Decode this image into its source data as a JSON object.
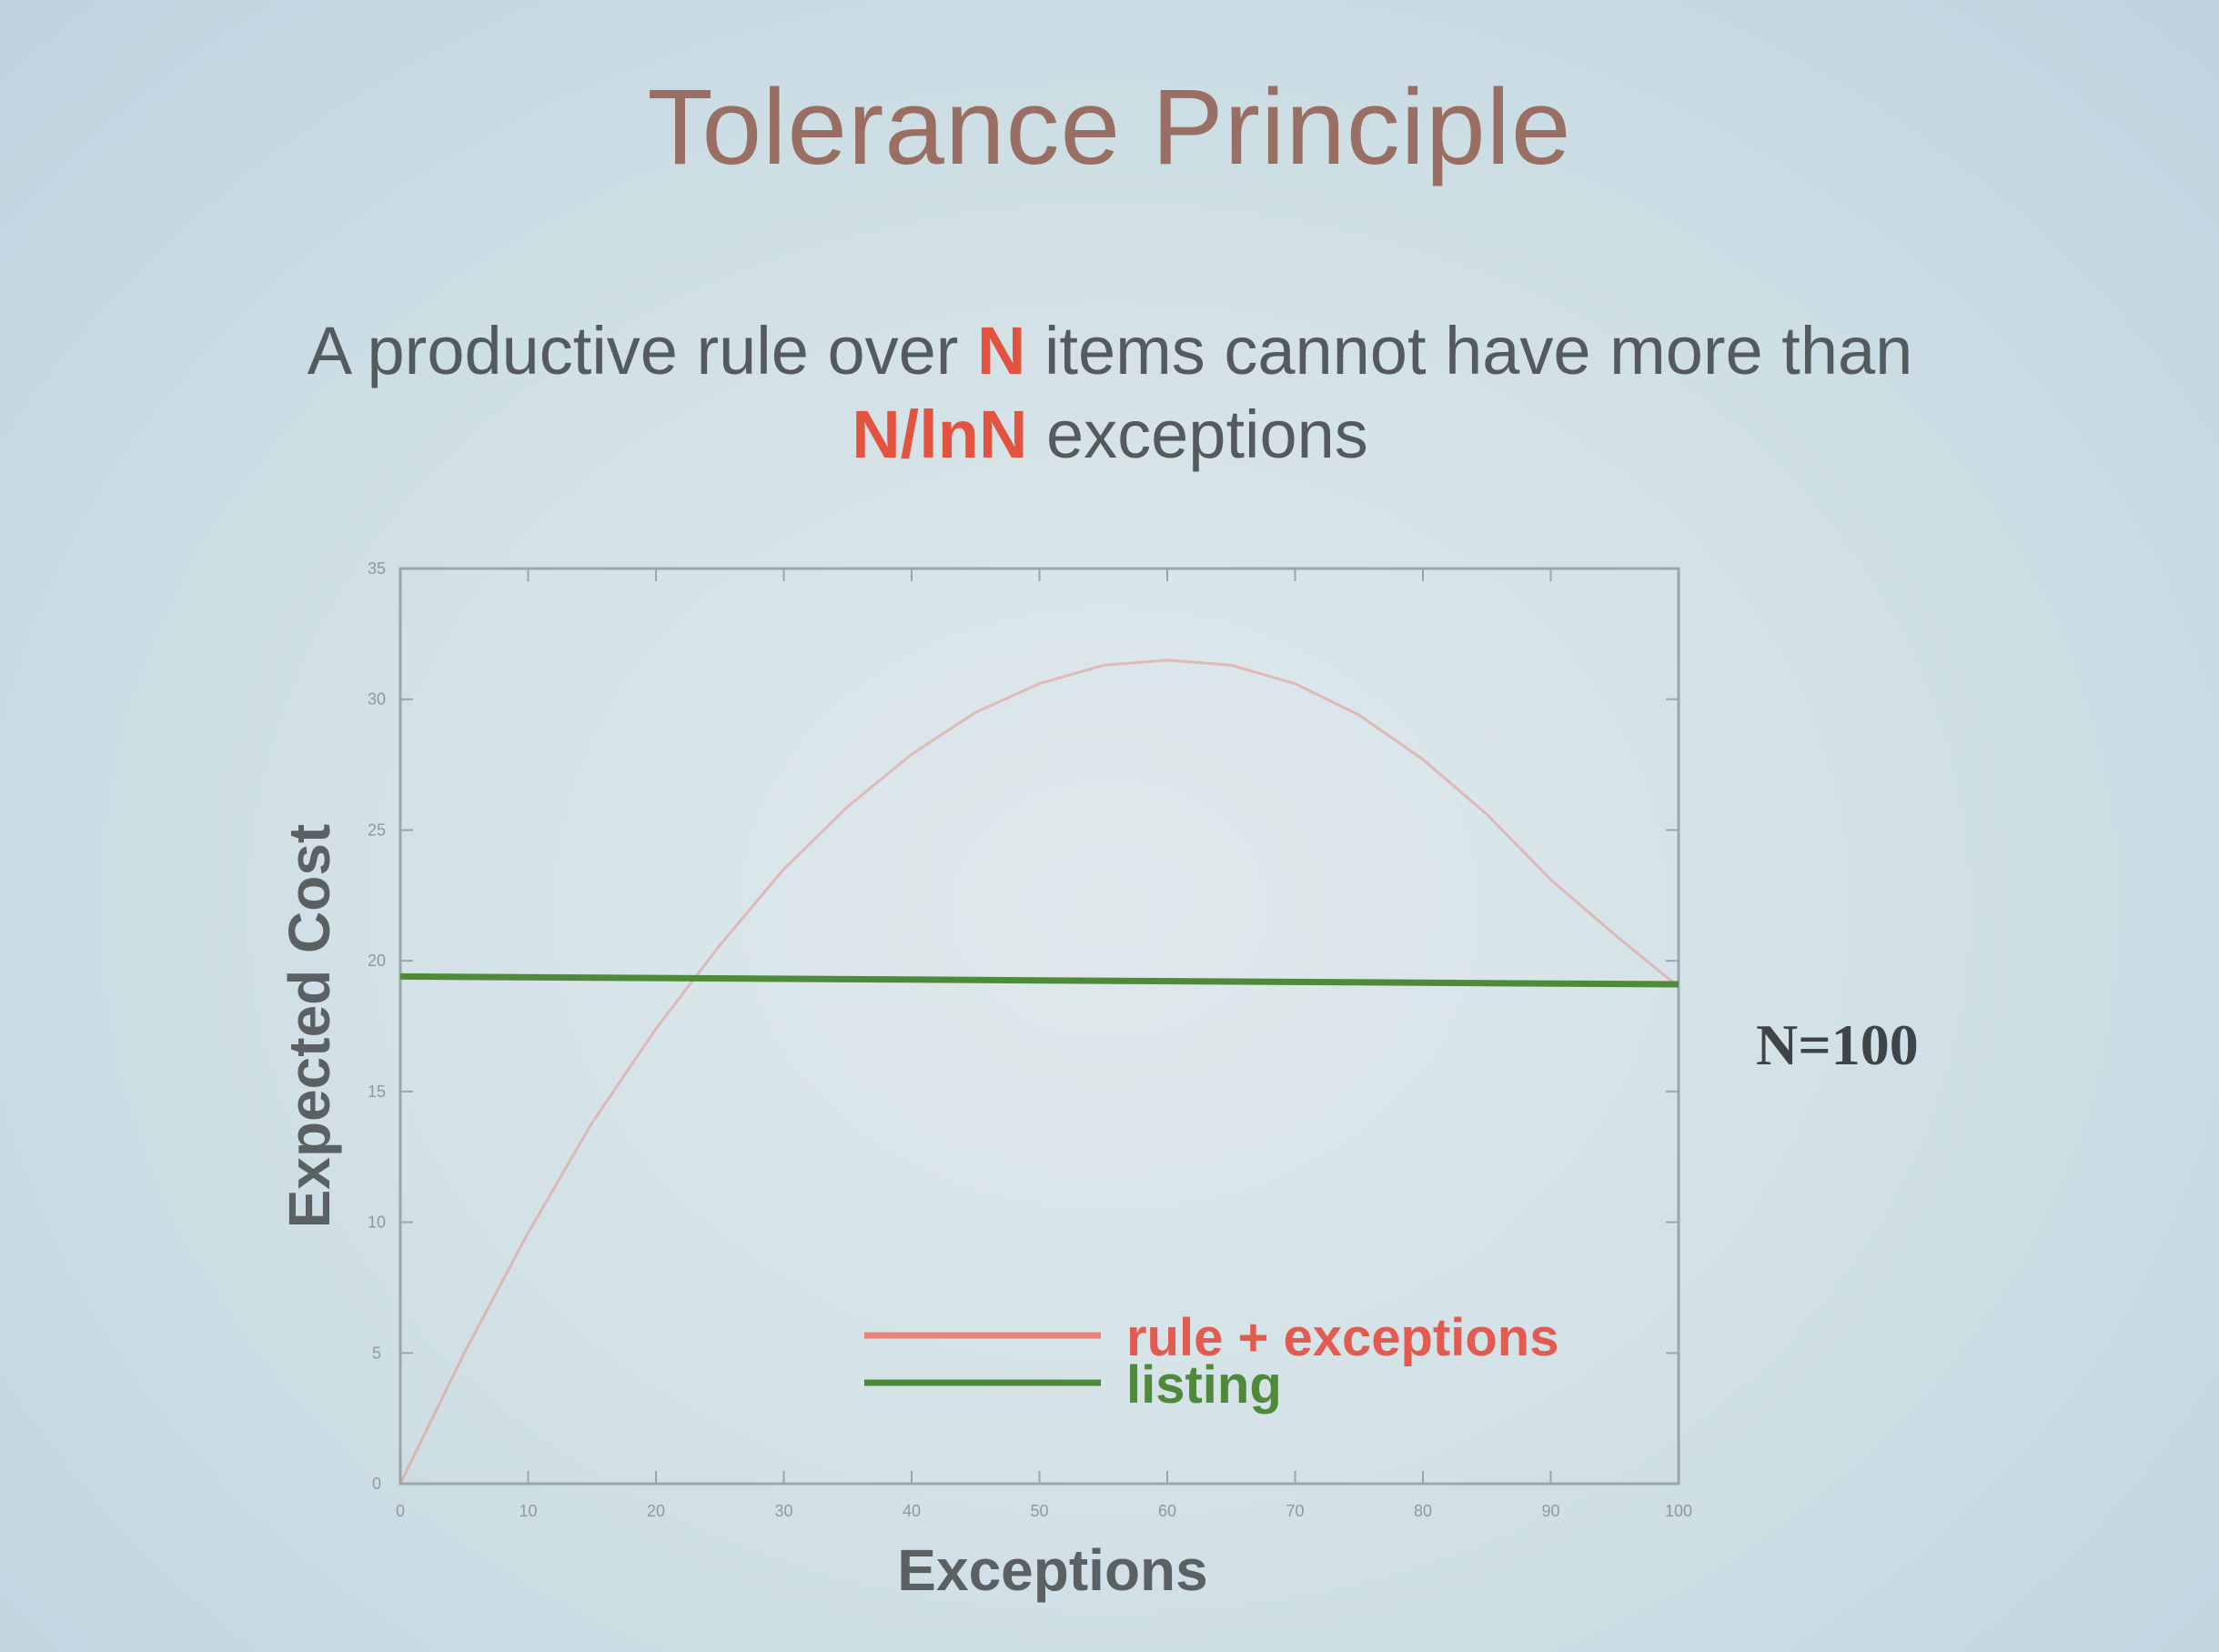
{
  "slide": {
    "title": "Tolerance Principle",
    "text_parts": [
      "A productive rule over ",
      "N",
      " items cannot have more than ",
      "N/lnN",
      " exceptions"
    ],
    "note": "N=100"
  },
  "colors": {
    "title": "#9a6f63",
    "highlight": "#e2543f",
    "rule_series": "#e8837a",
    "listing_series": "#4f8a3a"
  },
  "chart_data": {
    "type": "line",
    "title": "",
    "xlabel": "Exceptions",
    "ylabel": "Expected Cost",
    "xlim": [
      0,
      100
    ],
    "ylim": [
      0,
      35
    ],
    "x_ticks": [
      0,
      10,
      20,
      30,
      40,
      50,
      60,
      70,
      80,
      90,
      100
    ],
    "y_ticks": [
      0,
      5,
      10,
      15,
      20,
      25,
      30,
      35
    ],
    "legend_position": "bottom-right",
    "grid": false,
    "series": [
      {
        "name": "rule + exceptions",
        "x": [
          0,
          5,
          10,
          15,
          20,
          25,
          30,
          35,
          40,
          45,
          50,
          55,
          60,
          65,
          70,
          75,
          80,
          85,
          90,
          95,
          100
        ],
        "y": [
          0,
          5.0,
          9.6,
          13.8,
          17.4,
          20.6,
          23.5,
          25.9,
          27.9,
          29.5,
          30.6,
          31.3,
          31.5,
          31.3,
          30.6,
          29.4,
          27.7,
          25.6,
          23.1,
          21.0,
          19.0
        ]
      },
      {
        "name": "listing",
        "x": [
          0,
          100
        ],
        "y": [
          19.4,
          19.1
        ]
      }
    ]
  }
}
